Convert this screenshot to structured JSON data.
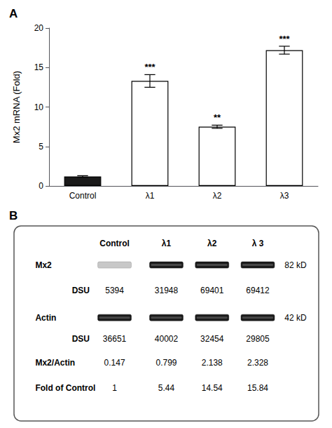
{
  "chart_data": [
    {
      "type": "bar",
      "title": "A",
      "categories": [
        "Control",
        "λ1",
        "λ2",
        "λ3"
      ],
      "values": [
        1.2,
        13.3,
        7.5,
        17.2
      ],
      "errors": [
        0.1,
        0.8,
        0.2,
        0.5
      ],
      "colors": [
        "#1a1a1a",
        "#ffffff",
        "#ffffff",
        "#ffffff"
      ],
      "annotations": [
        null,
        "***",
        "**",
        "***"
      ],
      "ylabel": "Mx2 mRNA (Fold)",
      "ylim": [
        0,
        20
      ],
      "yticks": [
        0,
        5,
        10,
        15,
        20
      ],
      "grid": false
    },
    {
      "type": "table",
      "title": "B",
      "columns": [
        "Control",
        "λ1",
        "λ2",
        "λ 3"
      ],
      "rows": [
        {
          "label": "Mx2",
          "note": "82 kD"
        },
        {
          "label": "DSU",
          "values": [
            5394,
            31948,
            69401,
            69412
          ]
        },
        {
          "label": "Actin",
          "note": "42 kD"
        },
        {
          "label": "DSU",
          "values": [
            36651,
            40002,
            32454,
            29805
          ]
        },
        {
          "label": "Mx2/Actin",
          "values": [
            0.147,
            0.799,
            2.138,
            2.328
          ]
        },
        {
          "label": "Fold of Control",
          "values": [
            1,
            5.44,
            14.54,
            15.84
          ]
        }
      ]
    }
  ]
}
